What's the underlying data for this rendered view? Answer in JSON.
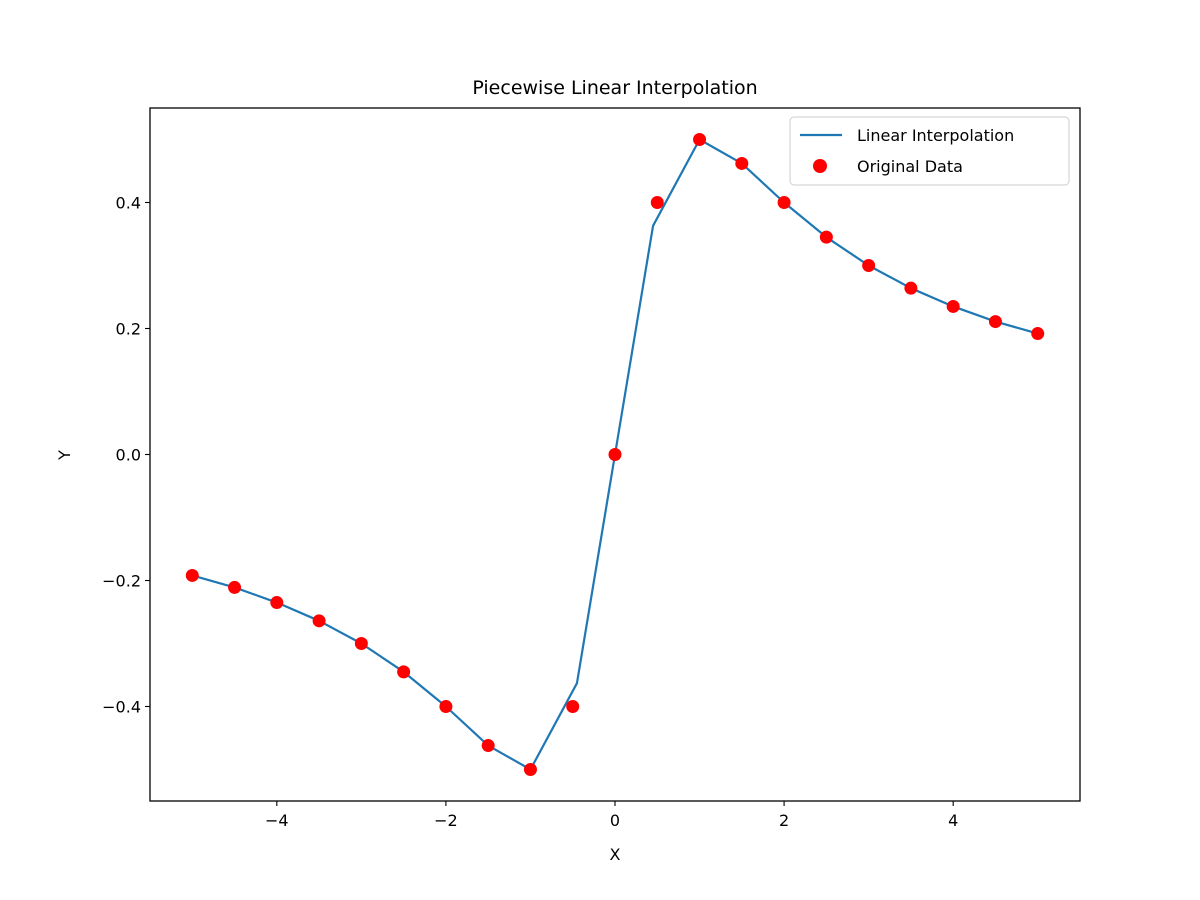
{
  "chart_data": {
    "type": "line",
    "title": "Piecewise Linear Interpolation",
    "xlabel": "X",
    "ylabel": "Y",
    "xlim": [
      -5.5,
      5.5
    ],
    "ylim": [
      -0.55,
      0.55
    ],
    "xticks": [
      -4,
      -2,
      0,
      2,
      4
    ],
    "xtick_labels": [
      "−4",
      "−2",
      "0",
      "2",
      "4"
    ],
    "yticks": [
      -0.4,
      -0.2,
      0.0,
      0.2,
      0.4
    ],
    "ytick_labels": [
      "−0.4",
      "−0.2",
      "0.0",
      "0.2",
      "0.4"
    ],
    "grid": false,
    "legend_position": "top-right",
    "series": [
      {
        "name": "Linear Interpolation",
        "style": "line",
        "color": "#1f77b4",
        "x": [
          -5,
          -4.5,
          -4,
          -3.5,
          -3,
          -2.5,
          -2,
          -1.5,
          -1,
          -0.45,
          0,
          0.45,
          1,
          1.5,
          2,
          2.5,
          3,
          3.5,
          4,
          4.5,
          5
        ],
        "y": [
          -0.192,
          -0.211,
          -0.235,
          -0.264,
          -0.3,
          -0.345,
          -0.4,
          -0.462,
          -0.5,
          -0.363,
          0,
          0.363,
          0.5,
          0.462,
          0.4,
          0.345,
          0.3,
          0.264,
          0.235,
          0.211,
          0.192
        ]
      },
      {
        "name": "Original Data",
        "style": "scatter",
        "color": "#ff0000",
        "x": [
          -5,
          -4.5,
          -4,
          -3.5,
          -3,
          -2.5,
          -2,
          -1.5,
          -1,
          -0.5,
          0,
          0.5,
          1,
          1.5,
          2,
          2.5,
          3,
          3.5,
          4,
          4.5,
          5
        ],
        "y": [
          -0.192,
          -0.211,
          -0.235,
          -0.264,
          -0.3,
          -0.345,
          -0.4,
          -0.462,
          -0.5,
          -0.4,
          0,
          0.4,
          0.5,
          0.462,
          0.4,
          0.345,
          0.3,
          0.264,
          0.235,
          0.211,
          0.192
        ]
      }
    ]
  }
}
